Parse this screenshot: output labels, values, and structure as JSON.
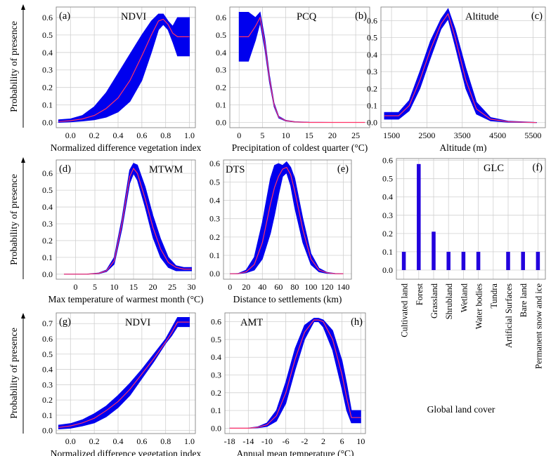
{
  "ylabel_shared": "Probability of presence",
  "chart_data": [
    {
      "id": "a",
      "type": "line",
      "panel_label": "(a)",
      "title": "NDVI",
      "xlabel": "Normalized difference vegetation index",
      "xlim": [
        -0.12,
        1.05
      ],
      "ylim": [
        -0.03,
        0.66
      ],
      "xticks": [
        0.0,
        0.2,
        0.4,
        0.6,
        0.8,
        1.0
      ],
      "yticks": [
        0.0,
        0.1,
        0.2,
        0.3,
        0.4,
        0.5,
        0.6
      ],
      "colors": {
        "band": "#0000ee",
        "line": "#ff3366"
      },
      "series": [
        {
          "name": "mean",
          "x": [
            -0.1,
            0.0,
            0.1,
            0.2,
            0.3,
            0.4,
            0.5,
            0.6,
            0.68,
            0.74,
            0.78,
            0.82,
            0.86,
            0.9,
            1.0
          ],
          "y": [
            0.005,
            0.01,
            0.02,
            0.04,
            0.08,
            0.14,
            0.24,
            0.38,
            0.5,
            0.58,
            0.59,
            0.56,
            0.51,
            0.49,
            0.49
          ]
        },
        {
          "name": "upper",
          "x": [
            -0.1,
            0.0,
            0.1,
            0.2,
            0.3,
            0.4,
            0.5,
            0.6,
            0.68,
            0.74,
            0.78,
            0.82,
            0.86,
            0.9,
            1.0
          ],
          "y": [
            0.015,
            0.02,
            0.04,
            0.09,
            0.17,
            0.28,
            0.39,
            0.5,
            0.58,
            0.62,
            0.62,
            0.58,
            0.55,
            0.6,
            0.6
          ]
        },
        {
          "name": "lower",
          "x": [
            -0.1,
            0.0,
            0.1,
            0.2,
            0.3,
            0.4,
            0.5,
            0.6,
            0.68,
            0.74,
            0.78,
            0.82,
            0.86,
            0.9,
            1.0
          ],
          "y": [
            0.0,
            0.003,
            0.008,
            0.015,
            0.03,
            0.06,
            0.12,
            0.24,
            0.4,
            0.53,
            0.56,
            0.53,
            0.46,
            0.38,
            0.38
          ]
        }
      ]
    },
    {
      "id": "b",
      "type": "line",
      "panel_label": "(b)",
      "title": "PCQ",
      "xlabel": "Precipitation of coldest quarter (°C)",
      "xlim": [
        -2,
        28
      ],
      "ylim": [
        -0.03,
        0.66
      ],
      "xticks": [
        0,
        5,
        10,
        15,
        20,
        25
      ],
      "yticks": [
        0.0,
        0.1,
        0.2,
        0.3,
        0.4,
        0.5,
        0.6
      ],
      "colors": {
        "band": "#0000ee",
        "line": "#ff3366"
      },
      "series": [
        {
          "name": "mean",
          "x": [
            0,
            2,
            3.5,
            4.5,
            5.5,
            6.5,
            7.5,
            8.5,
            10,
            12,
            15,
            20,
            27
          ],
          "y": [
            0.49,
            0.49,
            0.55,
            0.6,
            0.45,
            0.25,
            0.1,
            0.03,
            0.01,
            0.003,
            0.0,
            0.0,
            0.0
          ]
        },
        {
          "name": "upper",
          "x": [
            0,
            2,
            3.5,
            4.5,
            5.5,
            6.5,
            7.5,
            8.5,
            10,
            12,
            15,
            20,
            27
          ],
          "y": [
            0.63,
            0.63,
            0.6,
            0.63,
            0.48,
            0.27,
            0.11,
            0.035,
            0.012,
            0.004,
            0.001,
            0.0,
            0.0
          ]
        },
        {
          "name": "lower",
          "x": [
            0,
            2,
            3.5,
            4.5,
            5.5,
            6.5,
            7.5,
            8.5,
            10,
            12,
            15,
            20,
            27
          ],
          "y": [
            0.35,
            0.35,
            0.47,
            0.57,
            0.42,
            0.23,
            0.09,
            0.025,
            0.008,
            0.002,
            0.0,
            0.0,
            0.0
          ]
        }
      ]
    },
    {
      "id": "c",
      "type": "line",
      "panel_label": "(c)",
      "title": "Altitude",
      "xlabel": "Altitude (m)",
      "xlim": [
        1200,
        5850
      ],
      "ylim": [
        -0.03,
        0.68
      ],
      "xticks": [
        1500,
        2500,
        3500,
        4500,
        5500
      ],
      "yticks": [
        0.0,
        0.1,
        0.2,
        0.3,
        0.4,
        0.5,
        0.6
      ],
      "colors": {
        "band": "#0000ee",
        "line": "#ff3366"
      },
      "series": [
        {
          "name": "mean",
          "x": [
            1300,
            1700,
            2000,
            2300,
            2600,
            2900,
            3100,
            3300,
            3600,
            3900,
            4300,
            4800,
            5600
          ],
          "y": [
            0.04,
            0.04,
            0.1,
            0.25,
            0.43,
            0.58,
            0.64,
            0.5,
            0.25,
            0.08,
            0.02,
            0.005,
            0.0
          ]
        },
        {
          "name": "upper",
          "x": [
            1300,
            1700,
            2000,
            2300,
            2600,
            2900,
            3100,
            3300,
            3600,
            3900,
            4300,
            4800,
            5600
          ],
          "y": [
            0.06,
            0.06,
            0.13,
            0.3,
            0.48,
            0.61,
            0.67,
            0.55,
            0.32,
            0.12,
            0.03,
            0.008,
            0.001
          ]
        },
        {
          "name": "lower",
          "x": [
            1300,
            1700,
            2000,
            2300,
            2600,
            2900,
            3100,
            3300,
            3600,
            3900,
            4300,
            4800,
            5600
          ],
          "y": [
            0.02,
            0.02,
            0.07,
            0.2,
            0.38,
            0.55,
            0.61,
            0.45,
            0.2,
            0.05,
            0.01,
            0.002,
            0.0
          ]
        }
      ]
    },
    {
      "id": "d",
      "type": "line",
      "panel_label": "(d)",
      "title": "MTWM",
      "xlabel": "Max temperature of warmest month (°C)",
      "xlim": [
        -5,
        31
      ],
      "ylim": [
        -0.03,
        0.68
      ],
      "xticks": [
        0,
        5,
        10,
        15,
        20,
        25,
        30
      ],
      "yticks": [
        0.0,
        0.1,
        0.2,
        0.3,
        0.4,
        0.5,
        0.6
      ],
      "colors": {
        "band": "#0000ee",
        "line": "#ff3366"
      },
      "series": [
        {
          "name": "mean",
          "x": [
            -3,
            3,
            6,
            8,
            10,
            12,
            14,
            15,
            16,
            18,
            20,
            22,
            24,
            26,
            28,
            30
          ],
          "y": [
            0.0,
            0.0,
            0.005,
            0.02,
            0.08,
            0.3,
            0.58,
            0.63,
            0.6,
            0.45,
            0.28,
            0.15,
            0.07,
            0.04,
            0.03,
            0.03
          ]
        },
        {
          "name": "upper",
          "x": [
            -3,
            3,
            6,
            8,
            10,
            12,
            14,
            15,
            16,
            18,
            20,
            22,
            24,
            26,
            28,
            30
          ],
          "y": [
            0.0,
            0.001,
            0.007,
            0.025,
            0.1,
            0.33,
            0.62,
            0.66,
            0.65,
            0.52,
            0.35,
            0.21,
            0.1,
            0.05,
            0.04,
            0.04
          ]
        },
        {
          "name": "lower",
          "x": [
            -3,
            3,
            6,
            8,
            10,
            12,
            14,
            15,
            16,
            18,
            20,
            22,
            24,
            26,
            28,
            30
          ],
          "y": [
            0.0,
            0.0,
            0.003,
            0.015,
            0.06,
            0.27,
            0.54,
            0.6,
            0.56,
            0.4,
            0.22,
            0.1,
            0.04,
            0.02,
            0.02,
            0.02
          ]
        }
      ]
    },
    {
      "id": "e",
      "type": "line",
      "panel_label": "(e)",
      "title": "DTS",
      "xlabel": "Distance to settlements (km)",
      "xlim": [
        -8,
        150
      ],
      "ylim": [
        -0.03,
        0.62
      ],
      "xticks": [
        0,
        20,
        40,
        60,
        80,
        100,
        120,
        140
      ],
      "yticks": [
        0.0,
        0.1,
        0.2,
        0.3,
        0.4,
        0.5,
        0.6
      ],
      "colors": {
        "band": "#0000ee",
        "line": "#ff3366"
      },
      "series": [
        {
          "name": "mean",
          "x": [
            0,
            10,
            20,
            30,
            40,
            50,
            55,
            60,
            65,
            70,
            75,
            80,
            90,
            100,
            110,
            120,
            130,
            140
          ],
          "y": [
            0.0,
            0.0,
            0.01,
            0.05,
            0.17,
            0.38,
            0.47,
            0.53,
            0.57,
            0.58,
            0.54,
            0.45,
            0.24,
            0.08,
            0.02,
            0.005,
            0.0,
            0.0
          ]
        },
        {
          "name": "upper",
          "x": [
            0,
            10,
            20,
            30,
            40,
            50,
            55,
            60,
            65,
            70,
            75,
            80,
            90,
            100,
            110,
            120,
            130,
            140
          ],
          "y": [
            0.0,
            0.001,
            0.02,
            0.09,
            0.28,
            0.52,
            0.59,
            0.6,
            0.59,
            0.61,
            0.58,
            0.52,
            0.3,
            0.11,
            0.03,
            0.007,
            0.001,
            0.0
          ]
        },
        {
          "name": "lower",
          "x": [
            0,
            10,
            20,
            30,
            40,
            50,
            55,
            60,
            65,
            70,
            75,
            80,
            90,
            100,
            110,
            120,
            130,
            140
          ],
          "y": [
            0.0,
            0.0,
            0.005,
            0.02,
            0.08,
            0.22,
            0.32,
            0.43,
            0.53,
            0.55,
            0.48,
            0.36,
            0.17,
            0.05,
            0.01,
            0.002,
            0.0,
            0.0
          ]
        }
      ]
    },
    {
      "id": "f",
      "type": "bar",
      "panel_label": "(f)",
      "title": "GLC",
      "xlabel": "Global land cover",
      "ylim": [
        -0.05,
        0.61
      ],
      "yticks": [
        0.0,
        0.1,
        0.2,
        0.3,
        0.4,
        0.5,
        0.6
      ],
      "colors": {
        "band": "#2200dd",
        "line": "#ff3366"
      },
      "categories": [
        "Cultivated land",
        "Forest",
        "Grassland",
        "Shrubland",
        "Wetland",
        "Water bodies",
        "Tundra",
        "Artificial Surfaces",
        "Bare land",
        "Permanent snow and ice"
      ],
      "values": [
        0.1,
        0.58,
        0.21,
        0.1,
        0.1,
        0.1,
        0.0,
        0.1,
        0.1,
        0.1
      ]
    },
    {
      "id": "g",
      "type": "line",
      "panel_label": "(g)",
      "title": "NDVI",
      "xlabel": "Normalized difference vegetation index",
      "xlim": [
        -0.12,
        1.05
      ],
      "ylim": [
        -0.02,
        0.77
      ],
      "xticks": [
        0.0,
        0.2,
        0.4,
        0.6,
        0.8,
        1.0
      ],
      "yticks": [
        0.0,
        0.1,
        0.2,
        0.3,
        0.4,
        0.5,
        0.6,
        0.7
      ],
      "colors": {
        "band": "#0000ee",
        "line": "#ff3366"
      },
      "series": [
        {
          "name": "mean",
          "x": [
            -0.1,
            0.0,
            0.1,
            0.2,
            0.3,
            0.4,
            0.5,
            0.6,
            0.7,
            0.8,
            0.85,
            0.9,
            1.0
          ],
          "y": [
            0.02,
            0.03,
            0.05,
            0.08,
            0.13,
            0.19,
            0.27,
            0.37,
            0.47,
            0.58,
            0.64,
            0.71,
            0.71
          ]
        },
        {
          "name": "upper",
          "x": [
            -0.1,
            0.0,
            0.1,
            0.2,
            0.3,
            0.4,
            0.5,
            0.6,
            0.7,
            0.8,
            0.85,
            0.9,
            1.0
          ],
          "y": [
            0.035,
            0.045,
            0.07,
            0.11,
            0.16,
            0.23,
            0.31,
            0.4,
            0.5,
            0.6,
            0.67,
            0.74,
            0.74
          ]
        },
        {
          "name": "lower",
          "x": [
            -0.1,
            0.0,
            0.1,
            0.2,
            0.3,
            0.4,
            0.5,
            0.6,
            0.7,
            0.8,
            0.85,
            0.9,
            1.0
          ],
          "y": [
            0.01,
            0.015,
            0.03,
            0.05,
            0.09,
            0.15,
            0.23,
            0.34,
            0.45,
            0.57,
            0.62,
            0.68,
            0.68
          ]
        }
      ]
    },
    {
      "id": "h",
      "type": "line",
      "panel_label": "(h)",
      "title": "AMT",
      "xlabel": "Annual mean temperature (°C)",
      "xlim": [
        -19,
        11
      ],
      "ylim": [
        -0.03,
        0.65
      ],
      "xticks": [
        -18,
        -14,
        -10,
        -6,
        -2,
        2,
        6,
        10
      ],
      "yticks": [
        0.0,
        0.1,
        0.2,
        0.3,
        0.4,
        0.5,
        0.6
      ],
      "colors": {
        "band": "#0000ee",
        "line": "#ff3366"
      },
      "series": [
        {
          "name": "mean",
          "x": [
            -18,
            -14,
            -12,
            -10,
            -8,
            -6,
            -4,
            -2,
            0,
            1,
            2,
            4,
            6,
            7,
            8,
            10
          ],
          "y": [
            0.0,
            0.0,
            0.005,
            0.02,
            0.07,
            0.2,
            0.39,
            0.54,
            0.61,
            0.61,
            0.6,
            0.5,
            0.3,
            0.17,
            0.06,
            0.06
          ]
        },
        {
          "name": "upper",
          "x": [
            -18,
            -14,
            -12,
            -10,
            -8,
            -6,
            -4,
            -2,
            0,
            1,
            2,
            4,
            6,
            7,
            8,
            10
          ],
          "y": [
            0.0,
            0.001,
            0.008,
            0.03,
            0.1,
            0.26,
            0.45,
            0.58,
            0.62,
            0.62,
            0.61,
            0.55,
            0.38,
            0.25,
            0.1,
            0.1
          ]
        },
        {
          "name": "lower",
          "x": [
            -18,
            -14,
            -12,
            -10,
            -8,
            -6,
            -4,
            -2,
            0,
            1,
            2,
            4,
            6,
            7,
            8,
            10
          ],
          "y": [
            0.0,
            0.0,
            0.002,
            0.01,
            0.04,
            0.14,
            0.33,
            0.5,
            0.6,
            0.6,
            0.57,
            0.44,
            0.22,
            0.1,
            0.03,
            0.03
          ]
        }
      ]
    }
  ]
}
